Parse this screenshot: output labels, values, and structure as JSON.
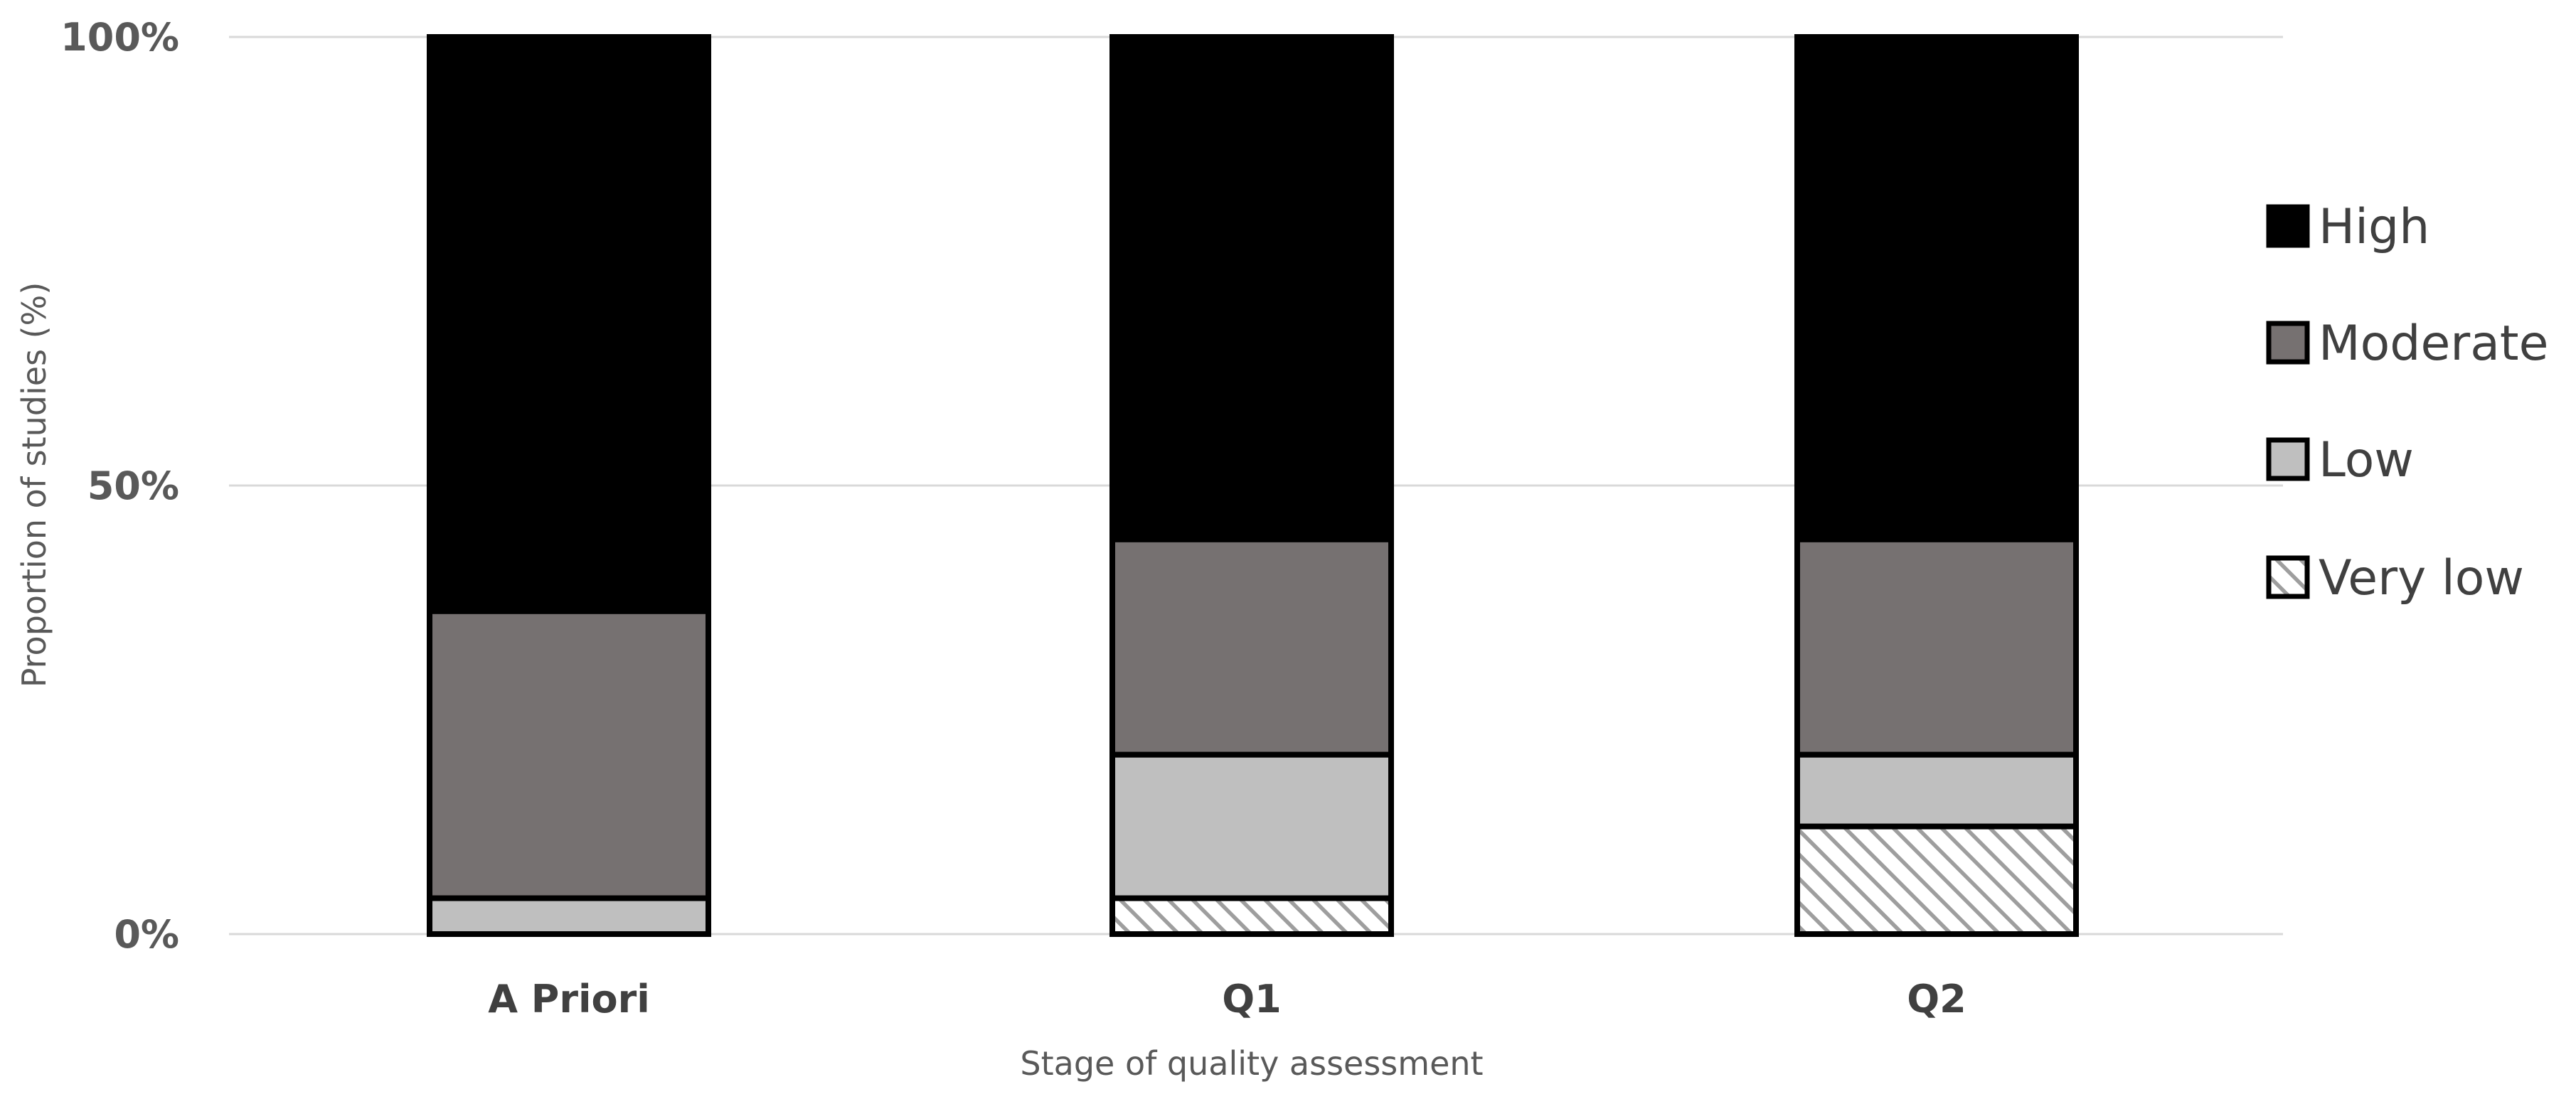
{
  "chart_data": {
    "type": "bar",
    "stacked": true,
    "percent": true,
    "categories": [
      "A Priori",
      "Q1",
      "Q2"
    ],
    "series": [
      {
        "name": "Very low",
        "values": [
          0,
          4,
          12
        ],
        "color": "#ffffff",
        "pattern": "diagonal-hatch"
      },
      {
        "name": "Low",
        "values": [
          4,
          16,
          8
        ],
        "color": "#bfbfbf"
      },
      {
        "name": "Moderate",
        "values": [
          32,
          24,
          24
        ],
        "color": "#767171"
      },
      {
        "name": "High",
        "values": [
          64,
          56,
          56
        ],
        "color": "#000000"
      }
    ],
    "legend_order": [
      "High",
      "Moderate",
      "Low",
      "Very low"
    ],
    "xlabel": "Stage of quality assessment",
    "ylabel": "Proportion of studies (%)",
    "ylim": [
      0,
      100
    ],
    "yticks": [
      0,
      50,
      100
    ],
    "ytick_labels": [
      "0%",
      "50%",
      "100%"
    ],
    "grid": true,
    "legend_position": "right"
  }
}
